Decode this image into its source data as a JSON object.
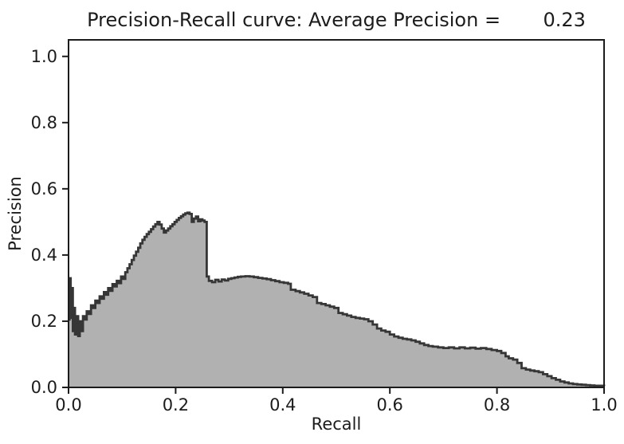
{
  "chart_data": {
    "type": "area",
    "title": "Precision-Recall curve: Average Precision =       0.23",
    "xlabel": "Recall",
    "ylabel": "Precision",
    "average_precision": 0.23,
    "xlim": [
      0.0,
      1.0
    ],
    "ylim": [
      0.0,
      1.05
    ],
    "grid": false,
    "legend": "none",
    "step": "post",
    "x_ticks": [
      0.0,
      0.2,
      0.4,
      0.6,
      0.8,
      1.0
    ],
    "x_tick_labels": [
      "0.0",
      "0.2",
      "0.4",
      "0.6",
      "0.8",
      "1.0"
    ],
    "y_ticks": [
      0.0,
      0.2,
      0.4,
      0.6,
      0.8,
      1.0
    ],
    "y_tick_labels": [
      "0.0",
      "0.2",
      "0.4",
      "0.6",
      "0.8",
      "1.0"
    ],
    "colors": {
      "fill": "#b1b1b1",
      "line": "#363636",
      "spine": "#1c1c1c",
      "text": "#1c1c1c",
      "background": "#ffffff"
    },
    "series": [
      {
        "name": "precision-recall",
        "x": [
          0.0,
          0.002,
          0.004,
          0.006,
          0.008,
          0.01,
          0.012,
          0.015,
          0.018,
          0.021,
          0.024,
          0.027,
          0.03,
          0.034,
          0.038,
          0.042,
          0.046,
          0.05,
          0.054,
          0.058,
          0.062,
          0.066,
          0.07,
          0.074,
          0.078,
          0.082,
          0.086,
          0.09,
          0.094,
          0.098,
          0.102,
          0.106,
          0.11,
          0.114,
          0.118,
          0.122,
          0.126,
          0.13,
          0.134,
          0.138,
          0.142,
          0.146,
          0.15,
          0.154,
          0.158,
          0.162,
          0.166,
          0.17,
          0.174,
          0.178,
          0.182,
          0.186,
          0.19,
          0.194,
          0.198,
          0.202,
          0.206,
          0.21,
          0.214,
          0.218,
          0.222,
          0.226,
          0.23,
          0.234,
          0.238,
          0.242,
          0.246,
          0.25,
          0.254,
          0.258,
          0.262,
          0.268,
          0.274,
          0.28,
          0.286,
          0.292,
          0.298,
          0.304,
          0.31,
          0.316,
          0.322,
          0.33,
          0.338,
          0.346,
          0.354,
          0.362,
          0.37,
          0.378,
          0.386,
          0.394,
          0.402,
          0.41,
          0.415,
          0.424,
          0.432,
          0.44,
          0.448,
          0.456,
          0.464,
          0.472,
          0.48,
          0.488,
          0.496,
          0.504,
          0.512,
          0.52,
          0.528,
          0.536,
          0.544,
          0.552,
          0.56,
          0.568,
          0.576,
          0.584,
          0.592,
          0.6,
          0.608,
          0.616,
          0.624,
          0.632,
          0.64,
          0.648,
          0.656,
          0.664,
          0.672,
          0.68,
          0.69,
          0.7,
          0.71,
          0.72,
          0.73,
          0.74,
          0.75,
          0.76,
          0.77,
          0.78,
          0.79,
          0.8,
          0.808,
          0.816,
          0.822,
          0.83,
          0.838,
          0.846,
          0.854,
          0.862,
          0.87,
          0.878,
          0.886,
          0.894,
          0.902,
          0.91,
          0.918,
          0.926,
          0.934,
          0.942,
          0.95,
          0.958,
          0.966,
          0.974,
          0.982,
          0.99,
          1.0
        ],
        "y": [
          0.205,
          0.33,
          0.21,
          0.3,
          0.17,
          0.24,
          0.16,
          0.215,
          0.155,
          0.2,
          0.17,
          0.215,
          0.205,
          0.23,
          0.222,
          0.248,
          0.24,
          0.262,
          0.255,
          0.275,
          0.268,
          0.288,
          0.28,
          0.3,
          0.292,
          0.312,
          0.305,
          0.322,
          0.315,
          0.335,
          0.328,
          0.348,
          0.36,
          0.372,
          0.385,
          0.398,
          0.41,
          0.422,
          0.435,
          0.446,
          0.455,
          0.463,
          0.47,
          0.478,
          0.486,
          0.493,
          0.5,
          0.492,
          0.48,
          0.468,
          0.474,
          0.48,
          0.487,
          0.493,
          0.5,
          0.506,
          0.512,
          0.517,
          0.522,
          0.526,
          0.528,
          0.524,
          0.5,
          0.51,
          0.516,
          0.502,
          0.508,
          0.504,
          0.5,
          0.335,
          0.322,
          0.318,
          0.325,
          0.32,
          0.326,
          0.323,
          0.328,
          0.33,
          0.332,
          0.334,
          0.335,
          0.336,
          0.335,
          0.333,
          0.331,
          0.329,
          0.327,
          0.324,
          0.321,
          0.318,
          0.316,
          0.313,
          0.295,
          0.291,
          0.287,
          0.283,
          0.278,
          0.273,
          0.255,
          0.252,
          0.248,
          0.244,
          0.24,
          0.225,
          0.221,
          0.217,
          0.213,
          0.21,
          0.208,
          0.206,
          0.2,
          0.19,
          0.178,
          0.172,
          0.168,
          0.16,
          0.154,
          0.15,
          0.147,
          0.145,
          0.142,
          0.138,
          0.133,
          0.128,
          0.125,
          0.123,
          0.121,
          0.119,
          0.121,
          0.118,
          0.121,
          0.118,
          0.12,
          0.117,
          0.119,
          0.116,
          0.113,
          0.11,
          0.104,
          0.094,
          0.088,
          0.084,
          0.074,
          0.058,
          0.054,
          0.051,
          0.049,
          0.046,
          0.04,
          0.034,
          0.028,
          0.023,
          0.018,
          0.015,
          0.012,
          0.01,
          0.009,
          0.008,
          0.007,
          0.006,
          0.005,
          0.005,
          0.004
        ]
      }
    ]
  }
}
